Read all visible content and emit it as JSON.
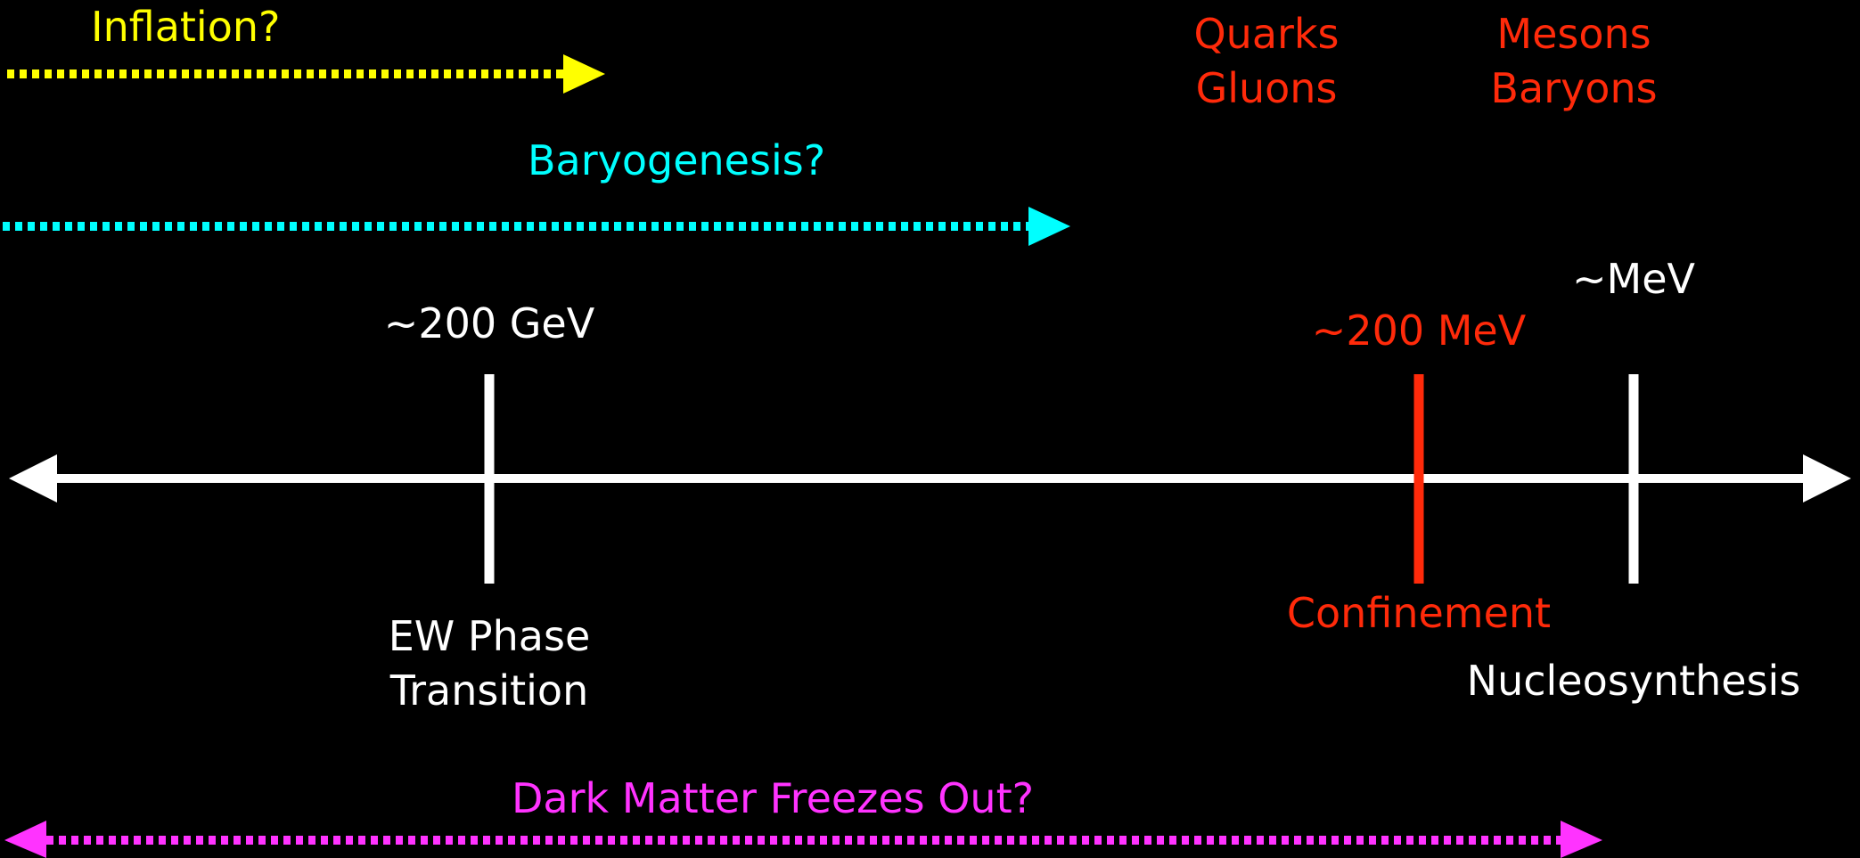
{
  "colors": {
    "background": "#000000",
    "axis": "#ffffff",
    "inflation": "#ffff00",
    "baryogenesis": "#00ffff",
    "qcd": "#ff2a0a",
    "dark_matter": "#ff33ff"
  },
  "arrows": {
    "inflation": "Inflation?",
    "baryogenesis": "Baryogenesis?",
    "dark_matter": "Dark Matter Freezes Out?"
  },
  "quarks": {
    "line1": "Quarks",
    "line2": "Gluons"
  },
  "mesons": {
    "line1": "Mesons",
    "line2": "Baryons"
  },
  "ticks": {
    "ew": {
      "energy": "~200 GeV",
      "name_line1": "EW Phase",
      "name_line2": "Transition"
    },
    "confinement": {
      "energy": "~200 MeV",
      "name": "Confinement"
    },
    "nucleosynthesis": {
      "energy": "~MeV",
      "name": "Nucleosynthesis"
    }
  }
}
